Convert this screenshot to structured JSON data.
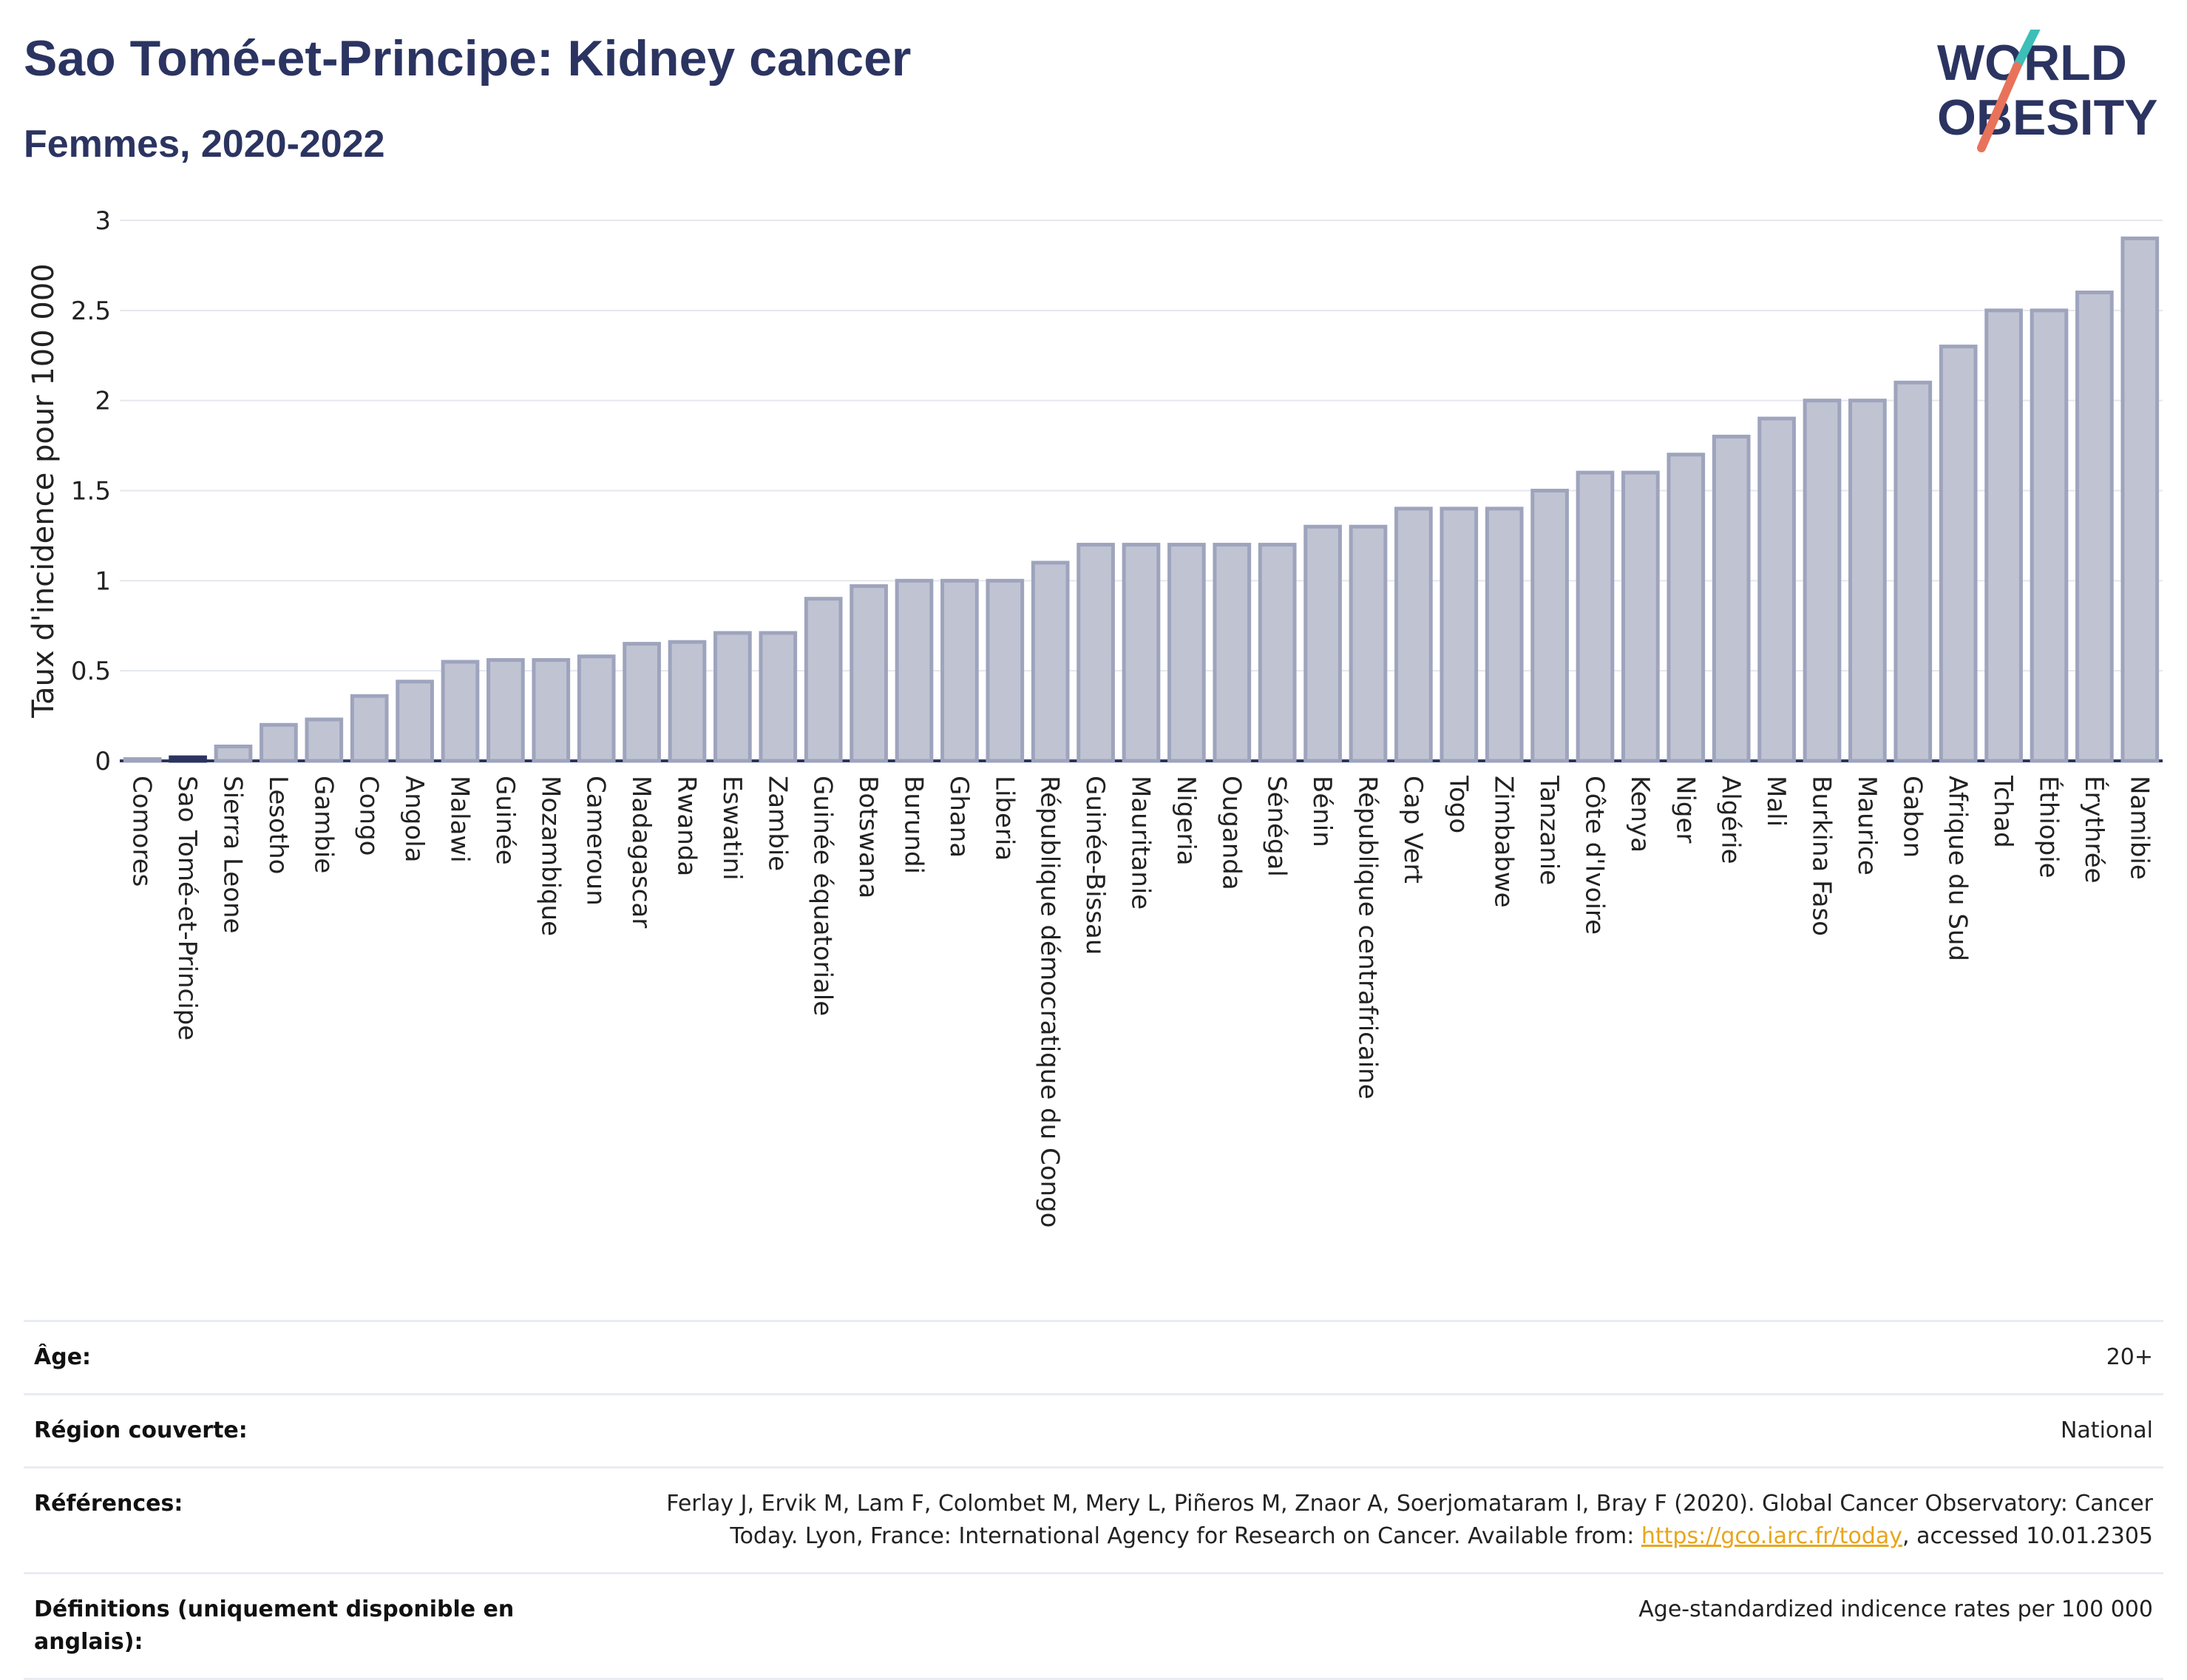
{
  "header": {
    "title": "Sao Tomé-et-Principe: Kidney cancer",
    "subtitle": "Femmes, 2020-2022"
  },
  "logo": {
    "line1": "WORLD",
    "line2": "OBESITY",
    "accent_color": "#3bbfb8",
    "slash_color": "#e8735a"
  },
  "chart_data": {
    "type": "bar",
    "ylabel": "Taux d'incidence pour 100 000",
    "ylim": [
      0,
      3
    ],
    "yticks": [
      0,
      0.5,
      1,
      1.5,
      2,
      2.5,
      3
    ],
    "ytick_labels": [
      "0",
      "0.5",
      "1",
      "1.5",
      "2",
      "2.5",
      "3"
    ],
    "grid": true,
    "highlight": "Sao Tomé-et-Principe",
    "bar_color": "#c0c4d2",
    "bar_edge_color": "#9ea4bd",
    "highlight_color": "#2b3461",
    "categories": [
      "Comores",
      "Sao Tomé-et-Principe",
      "Sierra Leone",
      "Lesotho",
      "Gambie",
      "Congo",
      "Angola",
      "Malawi",
      "Guinée",
      "Mozambique",
      "Cameroun",
      "Madagascar",
      "Rwanda",
      "Eswatini",
      "Zambie",
      "Guinée équatoriale",
      "Botswana",
      "Burundi",
      "Ghana",
      "Liberia",
      "République démocratique du Congo",
      "Guinée-Bissau",
      "Mauritanie",
      "Nigeria",
      "Ouganda",
      "Sénégal",
      "Bénin",
      "République centrafricaine",
      "Cap Vert",
      "Togo",
      "Zimbabwe",
      "Tanzanie",
      "Côte d'Ivoire",
      "Kenya",
      "Niger",
      "Algérie",
      "Mali",
      "Burkina Faso",
      "Maurice",
      "Gabon",
      "Afrique du Sud",
      "Tchad",
      "Éthiopie",
      "Érythrée",
      "Namibie"
    ],
    "values": [
      0.01,
      0.02,
      0.08,
      0.2,
      0.23,
      0.36,
      0.44,
      0.55,
      0.56,
      0.56,
      0.58,
      0.65,
      0.66,
      0.71,
      0.71,
      0.9,
      0.97,
      1.0,
      1.0,
      1.0,
      1.1,
      1.2,
      1.2,
      1.2,
      1.2,
      1.2,
      1.3,
      1.3,
      1.4,
      1.4,
      1.4,
      1.5,
      1.6,
      1.6,
      1.7,
      1.8,
      1.9,
      2.0,
      2.0,
      2.1,
      2.3,
      2.5,
      2.5,
      2.6,
      2.9
    ]
  },
  "meta": {
    "age_label": "Âge:",
    "age_value": "20+",
    "region_label": "Région couverte:",
    "region_value": "National",
    "references_label": "Références:",
    "references_text": "Ferlay J, Ervik M, Lam F, Colombet M, Mery L, Piñeros M, Znaor A, Soerjomataram I, Bray F (2020). Global Cancer Observatory: Cancer Today. Lyon, France: International Agency for Research on Cancer. Available from: ",
    "references_link": "https://gco.iarc.fr/today",
    "references_suffix": ", accessed 10.01.2305",
    "definitions_label": "Définitions (uniquement disponible en anglais):",
    "definitions_value": "Age-standardized indicence rates per 100 000"
  }
}
